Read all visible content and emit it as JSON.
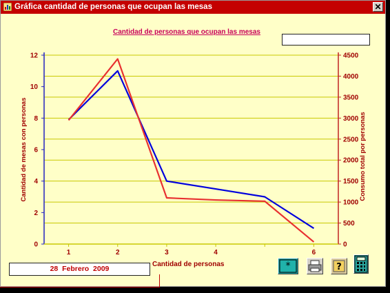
{
  "window": {
    "title": "Gráfica cantidad de personas que ocupan las mesas",
    "close_glyph": "✕"
  },
  "chart_title": "Cantidad de personas que ocupan las mesas",
  "top_box_value": "",
  "date": "28  Febrero  2009",
  "toolbar": {
    "icons": [
      "image-star-icon",
      "printer-icon",
      "help-icon",
      "calculator-icon"
    ]
  },
  "chart_data": {
    "type": "line",
    "xlabel": "Cantidad de personas",
    "ylabel": "Cantidad de mesas con personas",
    "y2label": "Consumo total por personas",
    "x": [
      1,
      2,
      3,
      4,
      5,
      6
    ],
    "x_ticks": [
      1,
      2,
      3,
      4,
      6
    ],
    "ylim": [
      0,
      12
    ],
    "y2lim": [
      0,
      4500
    ],
    "y_ticks": [
      0,
      2,
      4,
      6,
      8,
      10,
      12
    ],
    "y2_ticks": [
      0,
      500,
      1000,
      1500,
      2000,
      2500,
      3000,
      3500,
      4000,
      4500
    ],
    "grid": true,
    "series": [
      {
        "axis": "left",
        "color": "#0000dd",
        "values": [
          7.9,
          11.0,
          4.0,
          3.5,
          3.0,
          1.0
        ]
      },
      {
        "axis": "right",
        "color": "#e83030",
        "values": [
          2950,
          4410,
          1100,
          1050,
          1020,
          50
        ]
      }
    ]
  }
}
